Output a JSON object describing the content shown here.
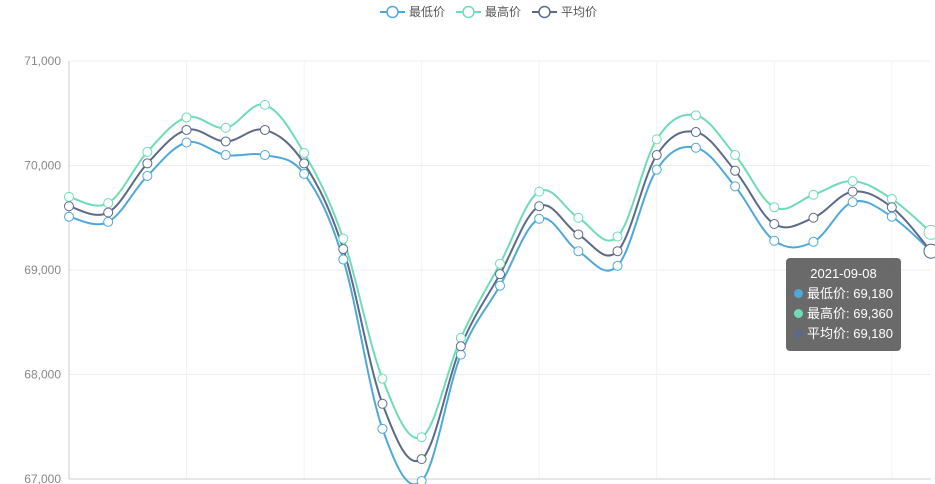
{
  "chart_data": {
    "type": "line",
    "title": "",
    "xlabel": "",
    "ylabel": "",
    "ylim": [
      67000,
      71000
    ],
    "yticks": [
      67000,
      68000,
      69000,
      70000,
      71000
    ],
    "ytick_labels": [
      "67,000",
      "68,000",
      "69,000",
      "70,000",
      "71,000"
    ],
    "smooth": true,
    "grid": true,
    "legend_position": "top-center",
    "series": [
      {
        "name": "最低价",
        "color": "#4ea9d9",
        "values": [
          69510,
          69460,
          69900,
          70220,
          70100,
          70100,
          69920,
          69100,
          67480,
          66980,
          68190,
          68850,
          69490,
          69180,
          69040,
          69960,
          70170,
          69800,
          69280,
          69270,
          69650,
          69510,
          69180
        ]
      },
      {
        "name": "最高价",
        "color": "#6fdcb6",
        "values": [
          69700,
          69640,
          70130,
          70460,
          70360,
          70580,
          70120,
          69300,
          67960,
          67400,
          68350,
          69060,
          69750,
          69500,
          69320,
          70250,
          70480,
          70100,
          69600,
          69720,
          69850,
          69680,
          69360
        ]
      },
      {
        "name": "平均价",
        "color": "#5c6a8a",
        "values": [
          69610,
          69550,
          70020,
          70340,
          70230,
          70340,
          70020,
          69200,
          67720,
          67190,
          68270,
          68960,
          69610,
          69340,
          69180,
          70100,
          70320,
          69950,
          69440,
          69500,
          69750,
          69600,
          69180
        ]
      }
    ],
    "tooltip": {
      "date": "2021-09-08",
      "rows": [
        {
          "label": "最低价: 69,180",
          "color": "#4ea9d9"
        },
        {
          "label": "最高价: 69,360",
          "color": "#6fdcb6"
        },
        {
          "label": "平均价: 69,180",
          "color": "#5c6a8a"
        }
      ]
    }
  }
}
